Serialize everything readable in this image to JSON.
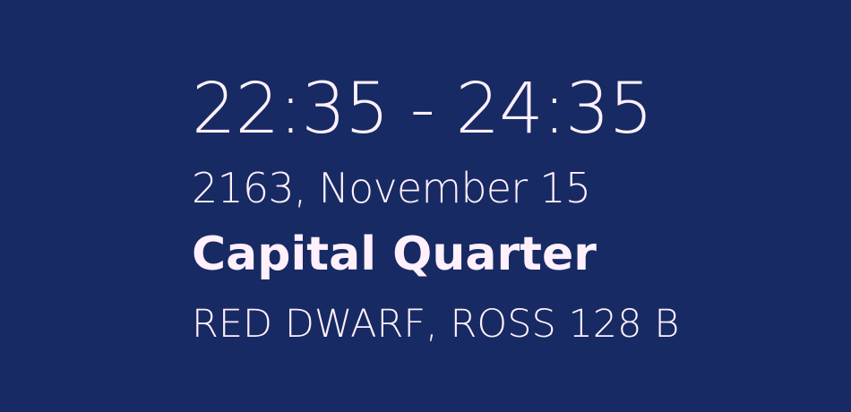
{
  "event": {
    "time_range": "22:35 - 24:35",
    "date": "2163, November 15",
    "location": "Capital Quarter",
    "system": "RED DWARF, ROSS 128 B"
  },
  "colors": {
    "background": "#172a63",
    "text": "#fff0fb"
  }
}
